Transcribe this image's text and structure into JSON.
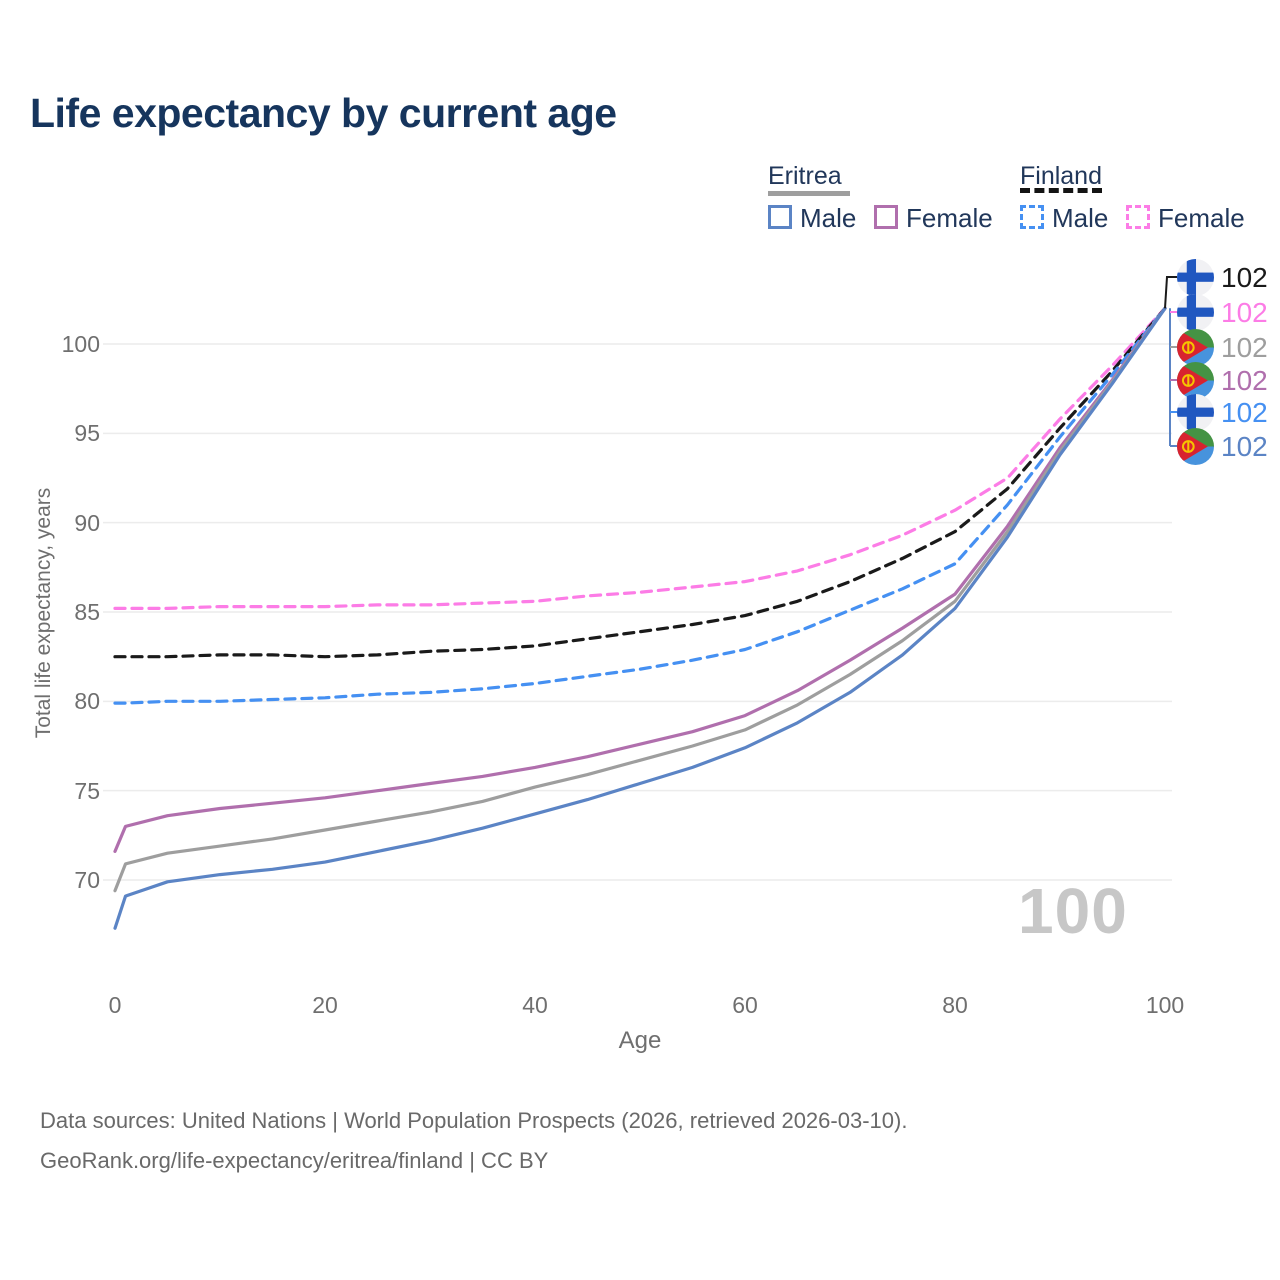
{
  "header": {
    "title": "Life expectancy by current age"
  },
  "legend": {
    "groups": [
      {
        "country": "Eritrea",
        "line_style": "solid",
        "underline_color": "#9e9e9e",
        "items": [
          {
            "label": "Male",
            "color": "#5b84c5",
            "dash": false
          },
          {
            "label": "Female",
            "color": "#b06fad",
            "dash": false
          }
        ]
      },
      {
        "country": "Finland",
        "line_style": "dashed",
        "underline_color": "#141414",
        "items": [
          {
            "label": "Male",
            "color": "#4590f2",
            "dash": true
          },
          {
            "label": "Female",
            "color": "#fc7ce6",
            "dash": true
          }
        ]
      }
    ]
  },
  "chart_data": {
    "type": "line",
    "title": "Life expectancy by current age",
    "xlabel": "Age",
    "ylabel": "Total life expectancy, years",
    "xlim": [
      0,
      100
    ],
    "ylim": [
      66.5,
      103.5
    ],
    "x_ticks": [
      0,
      20,
      40,
      60,
      80,
      100
    ],
    "y_ticks": [
      70,
      75,
      80,
      85,
      90,
      95,
      100
    ],
    "grid": "horizontal only",
    "legend_position": "top-right",
    "ages": [
      0,
      1,
      5,
      10,
      15,
      20,
      25,
      30,
      35,
      40,
      45,
      50,
      55,
      60,
      65,
      70,
      75,
      80,
      85,
      90,
      95,
      100
    ],
    "series": [
      {
        "name": "Finland Female",
        "color": "#fc7ce6",
        "dash": true,
        "values": [
          85.2,
          85.2,
          85.2,
          85.3,
          85.3,
          85.3,
          85.4,
          85.4,
          85.5,
          85.6,
          85.9,
          86.1,
          86.4,
          86.7,
          87.3,
          88.2,
          89.3,
          90.7,
          92.5,
          95.8,
          98.8,
          102
        ]
      },
      {
        "name": "Finland Both sexes",
        "color": "#1a1a1a",
        "dash": true,
        "values": [
          82.5,
          82.5,
          82.5,
          82.6,
          82.6,
          82.5,
          82.6,
          82.8,
          82.9,
          83.1,
          83.5,
          83.9,
          84.3,
          84.8,
          85.6,
          86.7,
          88.0,
          89.5,
          91.9,
          95.3,
          98.5,
          102
        ]
      },
      {
        "name": "Finland Male",
        "color": "#4590f2",
        "dash": true,
        "values": [
          79.9,
          79.9,
          80.0,
          80.0,
          80.1,
          80.2,
          80.4,
          80.5,
          80.7,
          81.0,
          81.4,
          81.8,
          82.3,
          82.9,
          83.9,
          85.1,
          86.3,
          87.7,
          91.0,
          94.8,
          98.3,
          102
        ]
      },
      {
        "name": "Eritrea Female",
        "color": "#b06fad",
        "dash": false,
        "values": [
          71.6,
          73.0,
          73.6,
          74.0,
          74.3,
          74.6,
          75.0,
          75.4,
          75.8,
          76.3,
          76.9,
          77.6,
          78.3,
          79.2,
          80.6,
          82.3,
          84.1,
          86.0,
          89.8,
          94.2,
          98.0,
          102
        ]
      },
      {
        "name": "Eritrea Both sexes",
        "color": "#9e9e9e",
        "dash": false,
        "values": [
          69.4,
          70.9,
          71.5,
          71.9,
          72.3,
          72.8,
          73.3,
          73.8,
          74.4,
          75.2,
          75.9,
          76.7,
          77.5,
          78.4,
          79.8,
          81.5,
          83.4,
          85.6,
          89.5,
          94.0,
          97.9,
          102
        ]
      },
      {
        "name": "Eritrea Male",
        "color": "#5b84c5",
        "dash": false,
        "values": [
          67.3,
          69.1,
          69.9,
          70.3,
          70.6,
          71.0,
          71.6,
          72.2,
          72.9,
          73.7,
          74.5,
          75.4,
          76.3,
          77.4,
          78.8,
          80.5,
          82.6,
          85.2,
          89.2,
          93.8,
          97.8,
          102
        ]
      }
    ]
  },
  "end_labels": [
    {
      "series": "Finland Both sexes",
      "flag": "finland",
      "value": "102",
      "color": "#1a1a1a"
    },
    {
      "series": "Finland Female",
      "flag": "finland",
      "value": "102",
      "color": "#fc7ce6"
    },
    {
      "series": "Eritrea Both sexes",
      "flag": "eritrea",
      "value": "102",
      "color": "#9e9e9e"
    },
    {
      "series": "Eritrea Female",
      "flag": "eritrea",
      "value": "102",
      "color": "#b06fad"
    },
    {
      "series": "Finland Male",
      "flag": "finland",
      "value": "102",
      "color": "#4590f2"
    },
    {
      "series": "Eritrea Male",
      "flag": "eritrea",
      "value": "102",
      "color": "#5b84c5"
    }
  ],
  "axes": {
    "x_label": "Age",
    "y_label": "Total life expectancy, years",
    "x_tick_labels": [
      "0",
      "20",
      "40",
      "60",
      "80",
      "100"
    ],
    "y_tick_labels": [
      "70",
      "75",
      "80",
      "85",
      "90",
      "95",
      "100"
    ]
  },
  "watermark": "100",
  "footer": {
    "line1": "Data sources: United Nations | World Population Prospects (2026, retrieved 2026-03-10).",
    "line2": "GeoRank.org/life-expectancy/eritrea/finland | CC BY"
  },
  "colors": {
    "title": "#16355d",
    "tick_text": "#6f6f6f",
    "gridline": "#ececec",
    "watermark": "#c7c7c7",
    "leader_line": "#5b84c5"
  },
  "flags": {
    "finland": {
      "bg": "#f1f1f4",
      "cross": "#2057c0"
    },
    "eritrea": {
      "green": "#449344",
      "blue": "#4793dd",
      "red": "#d8232f",
      "yellow": "#f5c400"
    }
  }
}
